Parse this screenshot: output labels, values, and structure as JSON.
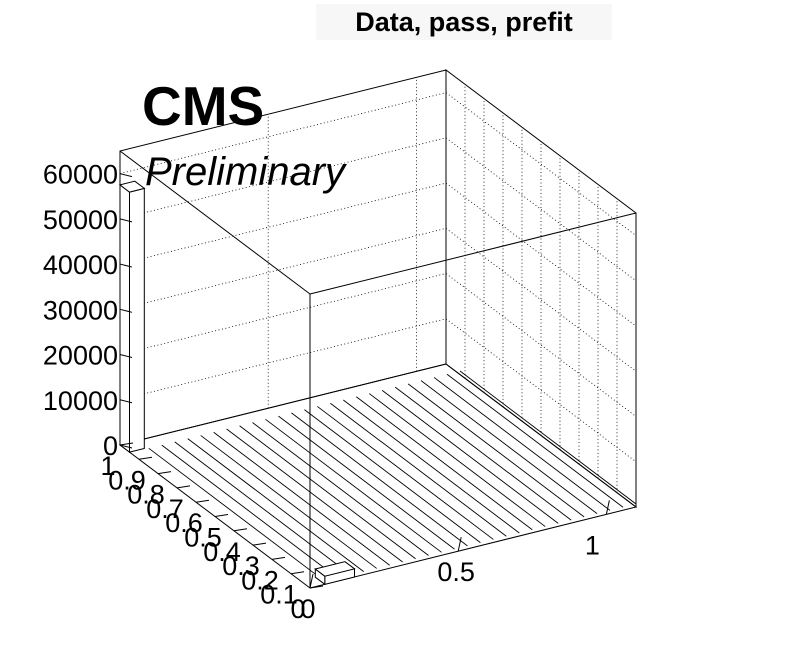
{
  "title": "Data, pass, prefit",
  "cms_label": "CMS",
  "prelim_label": "Preliminary",
  "chart_data": {
    "type": "bar",
    "view": "3d-lego",
    "z_axis": {
      "min": 0,
      "max": 65000,
      "ticks": [
        0,
        10000,
        20000,
        30000,
        40000,
        50000,
        60000
      ],
      "tick_labels": [
        "0",
        "10000",
        "20000",
        "30000",
        "40000",
        "50000",
        "60000"
      ]
    },
    "x_axis": {
      "min": 0,
      "max": 1.1,
      "ticks": [
        0,
        0.5,
        1
      ],
      "tick_labels": [
        "0",
        "0.5",
        "1"
      ]
    },
    "y_axis": {
      "min": 0,
      "max": 1,
      "ticks": [
        0,
        0.1,
        0.2,
        0.3,
        0.4,
        0.5,
        0.6,
        0.7,
        0.8,
        0.9,
        1
      ],
      "tick_labels": [
        "0",
        "0.1",
        "0.2",
        "0.3",
        "0.4",
        "0.5",
        "0.6",
        "0.7",
        "0.8",
        "0.9",
        "1"
      ]
    },
    "bins": [
      {
        "x": [
          0,
          0.05
        ],
        "y": [
          0.95,
          1.0
        ],
        "z": 57500
      },
      {
        "x": [
          0.05,
          0.15
        ],
        "y": [
          0.0,
          0.05
        ],
        "z": 1800
      }
    ],
    "grid": true
  }
}
